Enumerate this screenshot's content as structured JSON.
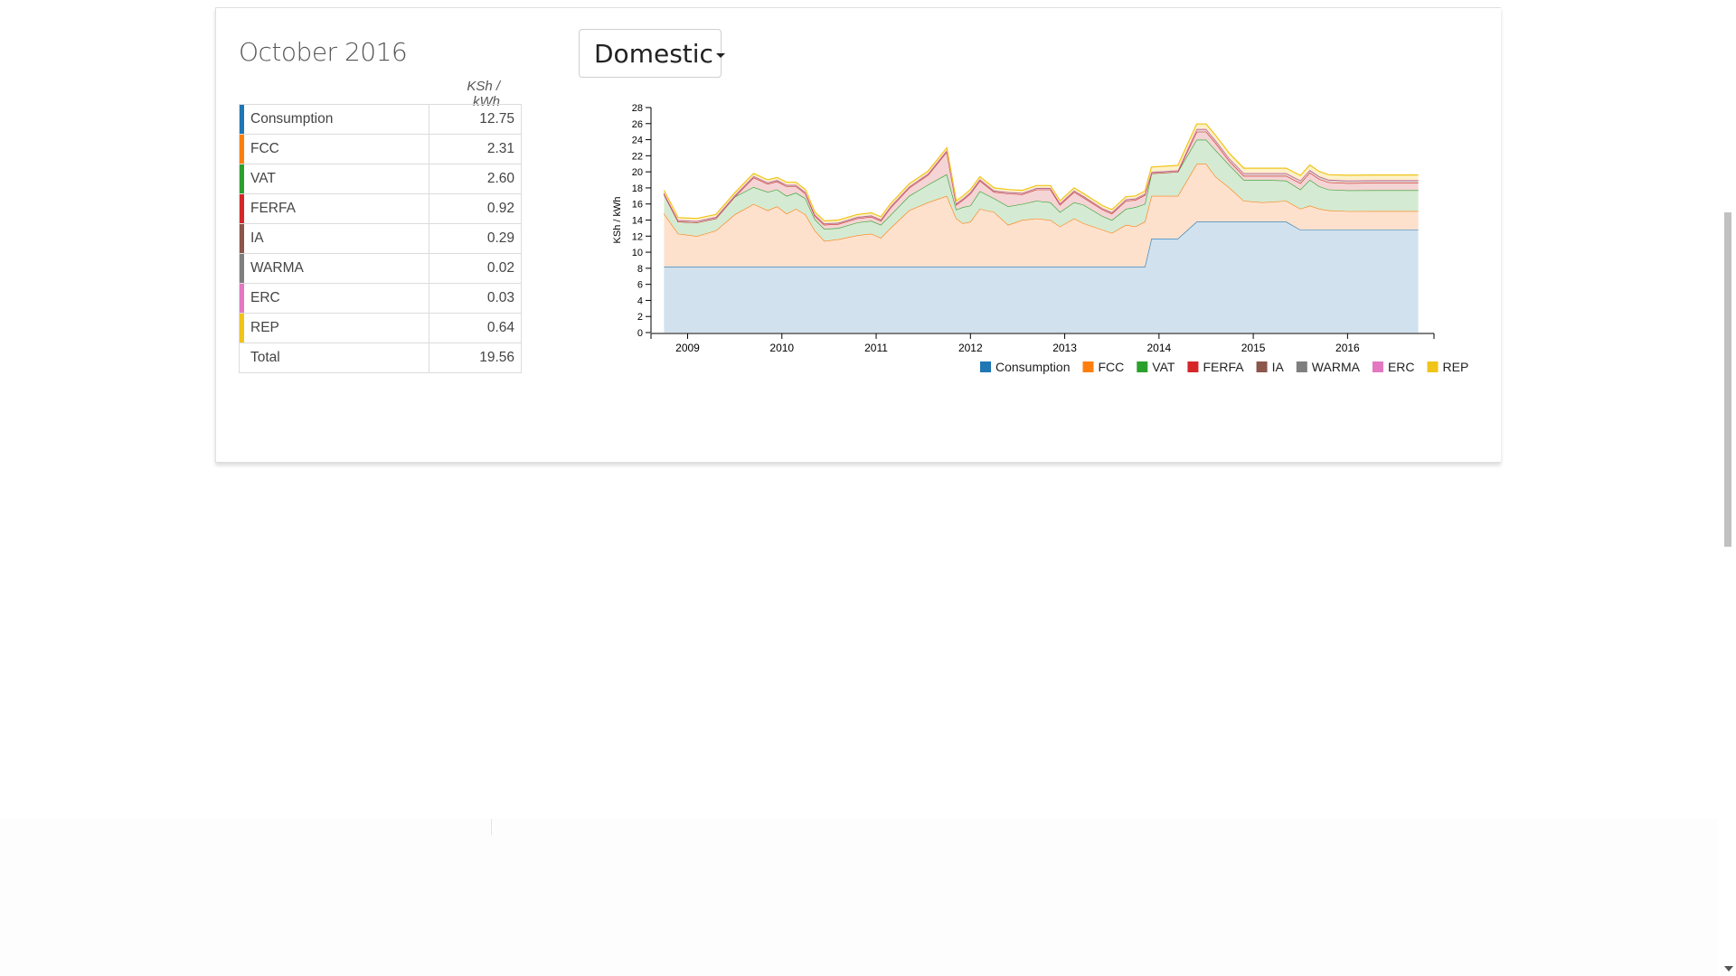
{
  "period_title": "October 2016",
  "unit": "KSh / kWh",
  "tariff_dropdown": {
    "selected": "Domestic"
  },
  "breakdown": [
    {
      "label": "Consumption",
      "value": "12.75",
      "color": "#1f77b4"
    },
    {
      "label": "FCC",
      "value": "2.31",
      "color": "#ff7f0e"
    },
    {
      "label": "VAT",
      "value": "2.60",
      "color": "#2ca02c"
    },
    {
      "label": "FERFA",
      "value": "0.92",
      "color": "#d62728"
    },
    {
      "label": "IA",
      "value": "0.29",
      "color": "#8c564b"
    },
    {
      "label": "WARMA",
      "value": "0.02",
      "color": "#7f7f7f"
    },
    {
      "label": "ERC",
      "value": "0.03",
      "color": "#e377c2"
    },
    {
      "label": "REP",
      "value": "0.64",
      "color": "#f0c419"
    }
  ],
  "total": {
    "label": "Total",
    "value": "19.56"
  },
  "chart_data": {
    "type": "area",
    "stacked": true,
    "ylabel": "KSh / kWh",
    "ylim": [
      0,
      28
    ],
    "yticks": [
      0,
      2,
      4,
      6,
      8,
      10,
      12,
      14,
      16,
      18,
      20,
      22,
      24,
      26,
      28
    ],
    "xlim": [
      2008.65,
      2016.85
    ],
    "xticks": [
      2009,
      2010,
      2011,
      2012,
      2013,
      2014,
      2015,
      2016
    ],
    "legend_position": "bottom",
    "x": [
      2008.75,
      2008.9,
      2009.1,
      2009.3,
      2009.5,
      2009.7,
      2009.85,
      2009.95,
      2010.05,
      2010.15,
      2010.25,
      2010.35,
      2010.45,
      2010.6,
      2010.8,
      2010.95,
      2011.05,
      2011.15,
      2011.35,
      2011.55,
      2011.75,
      2011.85,
      2011.92,
      2012.0,
      2012.1,
      2012.25,
      2012.4,
      2012.55,
      2012.7,
      2012.85,
      2012.95,
      2013.1,
      2013.2,
      2013.4,
      2013.5,
      2013.65,
      2013.75,
      2013.85,
      2013.92,
      2014.2,
      2014.4,
      2014.5,
      2014.6,
      2014.75,
      2014.9,
      2015.1,
      2015.35,
      2015.5,
      2015.6,
      2015.7,
      2015.8,
      2016.0,
      2016.3,
      2016.6,
      2016.75
    ],
    "series": [
      {
        "name": "Consumption",
        "color": "#1f77b4",
        "fill": "#d1e1ee",
        "values": [
          8.2,
          8.2,
          8.2,
          8.2,
          8.2,
          8.2,
          8.2,
          8.2,
          8.2,
          8.2,
          8.2,
          8.2,
          8.2,
          8.2,
          8.2,
          8.2,
          8.2,
          8.2,
          8.2,
          8.2,
          8.2,
          8.2,
          8.2,
          8.2,
          8.2,
          8.2,
          8.2,
          8.2,
          8.2,
          8.2,
          8.2,
          8.2,
          8.2,
          8.2,
          8.2,
          8.2,
          8.2,
          8.2,
          11.7,
          11.7,
          13.8,
          13.8,
          13.8,
          13.8,
          13.8,
          13.8,
          13.8,
          12.8,
          12.8,
          12.8,
          12.8,
          12.8,
          12.8,
          12.8,
          12.8
        ]
      },
      {
        "name": "FCC",
        "color": "#ff7f0e",
        "fill": "#fde1cd",
        "values": [
          6.6,
          4.1,
          3.8,
          4.5,
          6.5,
          7.8,
          7.0,
          7.5,
          6.6,
          7.2,
          6.5,
          4.5,
          3.2,
          3.4,
          3.9,
          4.1,
          3.6,
          4.8,
          7.0,
          8.0,
          8.8,
          6.0,
          5.4,
          5.6,
          7.2,
          6.8,
          5.2,
          5.8,
          6.0,
          5.8,
          5.0,
          6.0,
          5.4,
          4.6,
          4.2,
          5.2,
          5.0,
          5.6,
          5.3,
          5.3,
          7.2,
          7.2,
          5.6,
          4.2,
          2.6,
          2.4,
          2.6,
          2.6,
          3.0,
          2.6,
          2.4,
          2.3,
          2.31,
          2.31,
          2.31
        ]
      },
      {
        "name": "VAT",
        "color": "#2ca02c",
        "fill": "#d5ead2",
        "values": [
          2.4,
          1.5,
          1.7,
          1.5,
          2.2,
          2.1,
          2.3,
          2.1,
          2.2,
          2.0,
          2.0,
          1.4,
          1.5,
          1.4,
          1.6,
          1.6,
          1.6,
          1.6,
          1.8,
          2.2,
          2.7,
          1.1,
          2.0,
          2.0,
          2.2,
          1.7,
          2.3,
          2.0,
          2.2,
          2.2,
          1.8,
          2.0,
          2.3,
          1.7,
          1.6,
          2.0,
          2.4,
          2.2,
          2.8,
          3.0,
          3.0,
          3.0,
          3.3,
          2.8,
          2.6,
          2.8,
          2.5,
          2.4,
          3.2,
          2.8,
          2.6,
          2.6,
          2.6,
          2.6,
          2.6
        ]
      },
      {
        "name": "FERFA",
        "color": "#d62728",
        "fill": "#f4d4d4",
        "values": [
          0.0,
          0.0,
          0.0,
          0.0,
          0.0,
          1.2,
          1.0,
          1.0,
          1.2,
          0.8,
          0.6,
          0.4,
          0.5,
          0.5,
          0.5,
          0.5,
          0.5,
          0.9,
          1.0,
          1.2,
          2.8,
          0.6,
          0.9,
          1.5,
          1.3,
          0.8,
          1.6,
          1.2,
          1.4,
          1.6,
          0.9,
          1.3,
          0.9,
          0.8,
          0.8,
          1.0,
          0.9,
          1.1,
          0.0,
          0.0,
          1.0,
          1.0,
          0.9,
          0.5,
          0.5,
          0.5,
          0.6,
          0.8,
          0.9,
          0.9,
          0.9,
          0.9,
          0.92,
          0.92,
          0.92
        ]
      },
      {
        "name": "IA",
        "color": "#8c564b",
        "fill": "#e7d5d1",
        "values": [
          0.15,
          0.15,
          0.15,
          0.15,
          0.15,
          0.15,
          0.15,
          0.15,
          0.15,
          0.15,
          0.15,
          0.15,
          0.15,
          0.15,
          0.15,
          0.15,
          0.15,
          0.15,
          0.15,
          0.15,
          0.15,
          0.15,
          0.15,
          0.15,
          0.15,
          0.15,
          0.15,
          0.15,
          0.15,
          0.15,
          0.15,
          0.15,
          0.15,
          0.15,
          0.15,
          0.15,
          0.15,
          0.15,
          0.15,
          0.15,
          0.3,
          0.3,
          0.3,
          0.3,
          0.3,
          0.3,
          0.3,
          0.3,
          0.3,
          0.3,
          0.29,
          0.29,
          0.29,
          0.29,
          0.29
        ]
      },
      {
        "name": "WARMA",
        "color": "#7f7f7f",
        "fill": "#e3e3e3",
        "values": [
          0.02,
          0.02,
          0.02,
          0.02,
          0.02,
          0.02,
          0.02,
          0.02,
          0.02,
          0.02,
          0.02,
          0.02,
          0.02,
          0.02,
          0.02,
          0.02,
          0.02,
          0.02,
          0.02,
          0.02,
          0.02,
          0.02,
          0.02,
          0.02,
          0.02,
          0.02,
          0.02,
          0.02,
          0.02,
          0.02,
          0.02,
          0.02,
          0.02,
          0.02,
          0.02,
          0.02,
          0.02,
          0.02,
          0.02,
          0.02,
          0.02,
          0.02,
          0.02,
          0.02,
          0.02,
          0.02,
          0.02,
          0.02,
          0.02,
          0.02,
          0.02,
          0.02,
          0.02,
          0.02,
          0.02
        ]
      },
      {
        "name": "ERC",
        "color": "#e377c2",
        "fill": "#f7dcef",
        "values": [
          0.03,
          0.03,
          0.03,
          0.03,
          0.03,
          0.03,
          0.03,
          0.03,
          0.03,
          0.03,
          0.03,
          0.03,
          0.03,
          0.03,
          0.03,
          0.03,
          0.03,
          0.03,
          0.03,
          0.03,
          0.03,
          0.03,
          0.03,
          0.03,
          0.03,
          0.03,
          0.03,
          0.03,
          0.03,
          0.03,
          0.03,
          0.03,
          0.03,
          0.03,
          0.03,
          0.03,
          0.03,
          0.03,
          0.03,
          0.03,
          0.03,
          0.03,
          0.03,
          0.03,
          0.03,
          0.03,
          0.03,
          0.03,
          0.03,
          0.03,
          0.03,
          0.03,
          0.03,
          0.03,
          0.03
        ]
      },
      {
        "name": "REP",
        "color": "#f0c419",
        "fill": "#fcf1c8",
        "values": [
          0.3,
          0.3,
          0.3,
          0.3,
          0.3,
          0.3,
          0.3,
          0.3,
          0.3,
          0.3,
          0.3,
          0.3,
          0.3,
          0.3,
          0.3,
          0.3,
          0.3,
          0.3,
          0.3,
          0.3,
          0.3,
          0.3,
          0.3,
          0.3,
          0.3,
          0.3,
          0.3,
          0.3,
          0.3,
          0.3,
          0.3,
          0.3,
          0.3,
          0.3,
          0.3,
          0.3,
          0.3,
          0.3,
          0.6,
          0.6,
          0.6,
          0.6,
          0.6,
          0.6,
          0.6,
          0.6,
          0.6,
          0.6,
          0.6,
          0.6,
          0.6,
          0.64,
          0.64,
          0.64,
          0.64
        ]
      }
    ]
  }
}
